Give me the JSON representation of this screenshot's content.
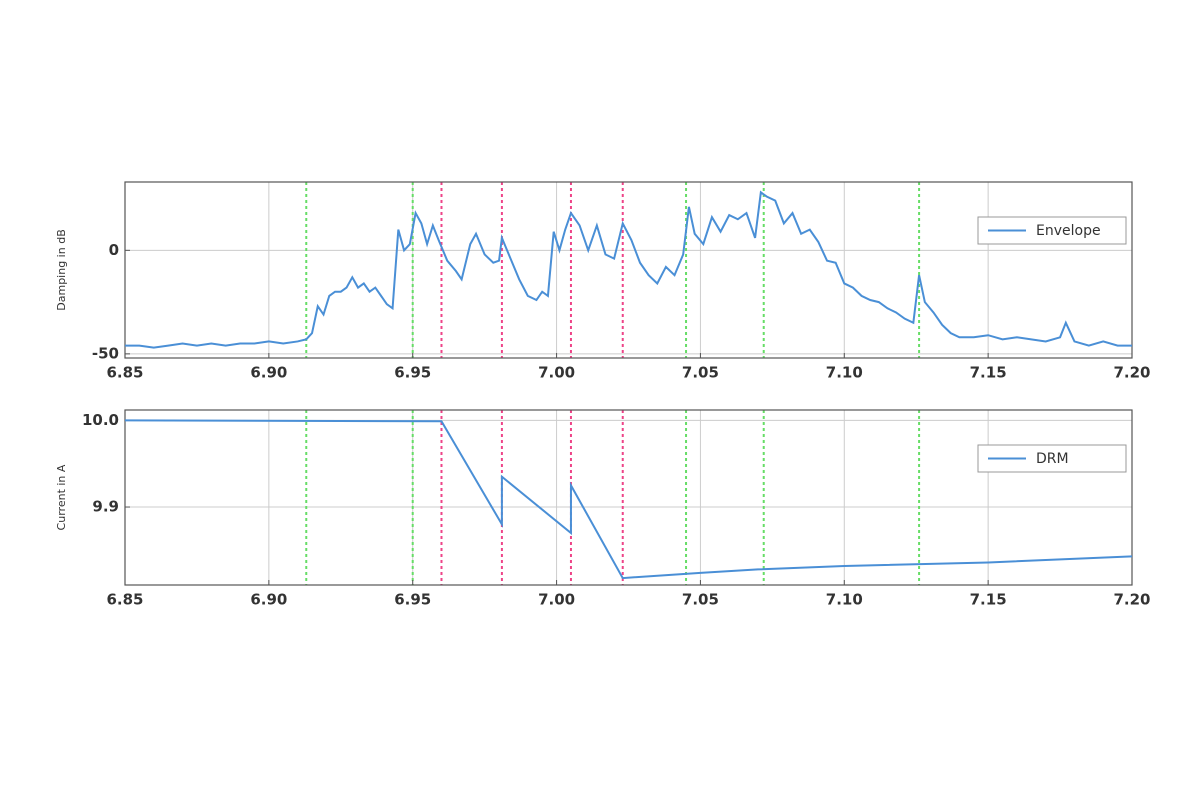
{
  "chart_data": [
    {
      "type": "line",
      "ylabel": "Damping in dB",
      "x": [
        6.85,
        6.855,
        6.86,
        6.865,
        6.87,
        6.875,
        6.88,
        6.885,
        6.89,
        6.895,
        6.9,
        6.905,
        6.91,
        6.913,
        6.915,
        6.917,
        6.919,
        6.921,
        6.923,
        6.925,
        6.927,
        6.929,
        6.931,
        6.933,
        6.935,
        6.937,
        6.939,
        6.941,
        6.943,
        6.945,
        6.947,
        6.949,
        6.951,
        6.953,
        6.955,
        6.957,
        6.959,
        6.962,
        6.965,
        6.967,
        6.97,
        6.972,
        6.975,
        6.978,
        6.98,
        6.981,
        6.984,
        6.987,
        6.99,
        6.993,
        6.995,
        6.997,
        6.999,
        7.001,
        7.003,
        7.005,
        7.008,
        7.011,
        7.014,
        7.017,
        7.02,
        7.023,
        7.026,
        7.029,
        7.032,
        7.035,
        7.038,
        7.041,
        7.044,
        7.046,
        7.048,
        7.051,
        7.054,
        7.057,
        7.06,
        7.063,
        7.066,
        7.069,
        7.071,
        7.073,
        7.076,
        7.079,
        7.082,
        7.085,
        7.088,
        7.091,
        7.094,
        7.097,
        7.1,
        7.103,
        7.106,
        7.109,
        7.112,
        7.115,
        7.118,
        7.121,
        7.124,
        7.126,
        7.128,
        7.131,
        7.134,
        7.137,
        7.14,
        7.145,
        7.15,
        7.155,
        7.16,
        7.165,
        7.17,
        7.175,
        7.177,
        7.18,
        7.185,
        7.19,
        7.195,
        7.2
      ],
      "series": [
        {
          "name": "Envelope",
          "color": "#4a8fd6",
          "values": [
            -46,
            -46,
            -47,
            -46,
            -45,
            -46,
            -45,
            -46,
            -45,
            -45,
            -44,
            -45,
            -44,
            -43,
            -40,
            -27,
            -31,
            -22,
            -20,
            -20,
            -18,
            -13,
            -18,
            -16,
            -20,
            -18,
            -22,
            -26,
            -28,
            10,
            0,
            3,
            18,
            13,
            3,
            12,
            5,
            -5,
            -10,
            -14,
            3,
            8,
            -2,
            -6,
            -5,
            6,
            -4,
            -14,
            -22,
            -24,
            -20,
            -22,
            9,
            0,
            10,
            18,
            12,
            0,
            12,
            -2,
            -4,
            13,
            5,
            -6,
            -12,
            -16,
            -8,
            -12,
            -2,
            21,
            8,
            3,
            16,
            9,
            17,
            15,
            18,
            6,
            28,
            26,
            24,
            13,
            18,
            8,
            10,
            4,
            -5,
            -6,
            -16,
            -18,
            -22,
            -24,
            -25,
            -28,
            -30,
            -33,
            -35,
            -12,
            -25,
            -30,
            -36,
            -40,
            -42,
            -42,
            -41,
            -43,
            -42,
            -43,
            -44,
            -42,
            -35,
            -44,
            -46,
            -44,
            -46,
            -46
          ]
        }
      ],
      "xlim": [
        6.85,
        7.2
      ],
      "xticks": [
        6.85,
        {
          "value": 6.9,
          "label": "6.90"
        },
        6.95,
        {
          "value": 7.0,
          "label": "7.00"
        },
        7.05,
        {
          "value": 7.1,
          "label": "7.10"
        },
        7.15,
        {
          "value": 7.2,
          "label": "7.20"
        }
      ],
      "ylim": [
        -52,
        33
      ],
      "yticks": [
        -50,
        0
      ],
      "grid": true,
      "legend": "right",
      "vlines": [
        {
          "x": 6.913,
          "color": "#66dd66"
        },
        {
          "x": 6.95,
          "color": "#66dd66"
        },
        {
          "x": 6.96,
          "color": "#ee4488"
        },
        {
          "x": 6.981,
          "color": "#ee4488"
        },
        {
          "x": 7.005,
          "color": "#ee4488"
        },
        {
          "x": 7.023,
          "color": "#ee4488"
        },
        {
          "x": 7.045,
          "color": "#66dd66"
        },
        {
          "x": 7.072,
          "color": "#66dd66"
        },
        {
          "x": 7.126,
          "color": "#66dd66"
        }
      ]
    },
    {
      "type": "line",
      "ylabel": "Current in A",
      "x": [
        6.85,
        6.96,
        6.981,
        6.981,
        7.005,
        7.005,
        7.023,
        7.05,
        7.07,
        7.1,
        7.15,
        7.2
      ],
      "series": [
        {
          "name": "DRM",
          "color": "#4a8fd6",
          "values": [
            10.0,
            9.999,
            9.88,
            9.935,
            9.87,
            9.925,
            9.818,
            9.824,
            9.828,
            9.832,
            9.836,
            9.843
          ]
        }
      ],
      "xlim": [
        6.85,
        7.2
      ],
      "xticks": [
        6.85,
        {
          "value": 6.9,
          "label": "6.90"
        },
        6.95,
        {
          "value": 7.0,
          "label": "7.00"
        },
        7.05,
        {
          "value": 7.1,
          "label": "7.10"
        },
        7.15,
        {
          "value": 7.2,
          "label": "7.20"
        }
      ],
      "ylim": [
        9.81,
        10.012
      ],
      "yticks": [
        {
          "value": 9.9,
          "label": "9.9"
        },
        {
          "value": 10.0,
          "label": "10.0"
        }
      ],
      "grid": true,
      "legend": "right",
      "vlines": [
        {
          "x": 6.913,
          "color": "#66dd66"
        },
        {
          "x": 6.95,
          "color": "#66dd66"
        },
        {
          "x": 6.96,
          "color": "#ee4488"
        },
        {
          "x": 6.981,
          "color": "#ee4488"
        },
        {
          "x": 7.005,
          "color": "#ee4488"
        },
        {
          "x": 7.023,
          "color": "#ee4488"
        },
        {
          "x": 7.045,
          "color": "#66dd66"
        },
        {
          "x": 7.072,
          "color": "#66dd66"
        },
        {
          "x": 7.126,
          "color": "#66dd66"
        }
      ]
    }
  ]
}
